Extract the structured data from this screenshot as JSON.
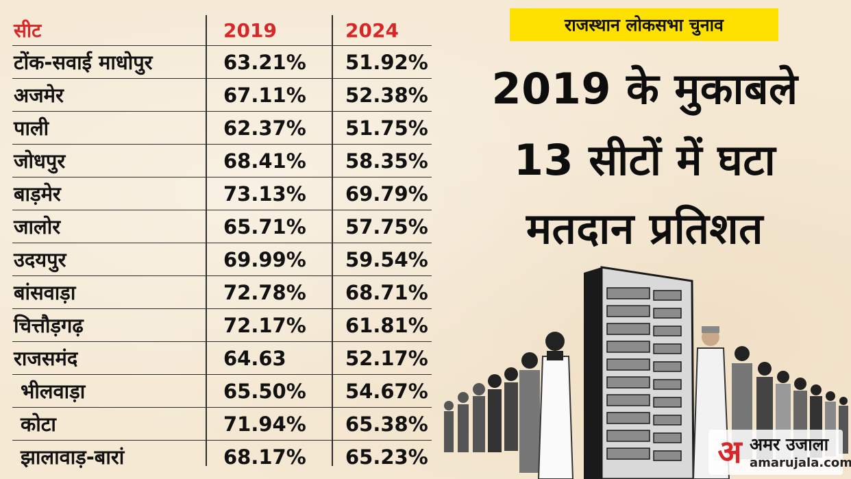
{
  "table": {
    "headers": [
      "सीट",
      "2019",
      "2024"
    ],
    "rows": [
      {
        "seat": "टोंक-सवाई माधोपुर",
        "y2019": "63.21%",
        "y2024": "51.92%"
      },
      {
        "seat": "अजमेर",
        "y2019": "67.11%",
        "y2024": "52.38%"
      },
      {
        "seat": "पाली",
        "y2019": "62.37%",
        "y2024": "51.75%"
      },
      {
        "seat": "जोधपुर",
        "y2019": "68.41%",
        "y2024": "58.35%"
      },
      {
        "seat": "बाड़मेर",
        "y2019": "73.13%",
        "y2024": "69.79%"
      },
      {
        "seat": "जालोर",
        "y2019": "65.71%",
        "y2024": "57.75%"
      },
      {
        "seat": "उदयपुर",
        "y2019": "69.99%",
        "y2024": "59.54%"
      },
      {
        "seat": "बांसवाड़ा",
        "y2019": "72.78%",
        "y2024": "68.71%"
      },
      {
        "seat": "चित्तौड़गढ़",
        "y2019": "72.17%",
        "y2024": "61.81%"
      },
      {
        "seat": "राजसमंद",
        "y2019": "64.63",
        "y2024": "52.17%"
      },
      {
        "seat": "भीलवाड़ा",
        "y2019": "65.50%",
        "y2024": "54.67%"
      },
      {
        "seat": "कोटा",
        "y2019": "71.94%",
        "y2024": "65.38%"
      },
      {
        "seat": "झालावाड़-बारां",
        "y2019": "68.17%",
        "y2024": "65.23%"
      }
    ]
  },
  "tag": "राजस्थान लोकसभा चुनाव",
  "headline": [
    "2019 के मुकाबले",
    "13 सीटों में घटा",
    "मतदान प्रतिशत"
  ],
  "logo": {
    "glyph": "अ",
    "name": "अमर उजाला",
    "url": "amarujala.com"
  },
  "colors": {
    "header_red": "#d62828",
    "tag_yellow": "#ffe100",
    "background": "#f5e9d4"
  },
  "icons": [
    "voting-machine-icon",
    "voters-crowd-illustration",
    "amar-ujala-logo-icon"
  ]
}
